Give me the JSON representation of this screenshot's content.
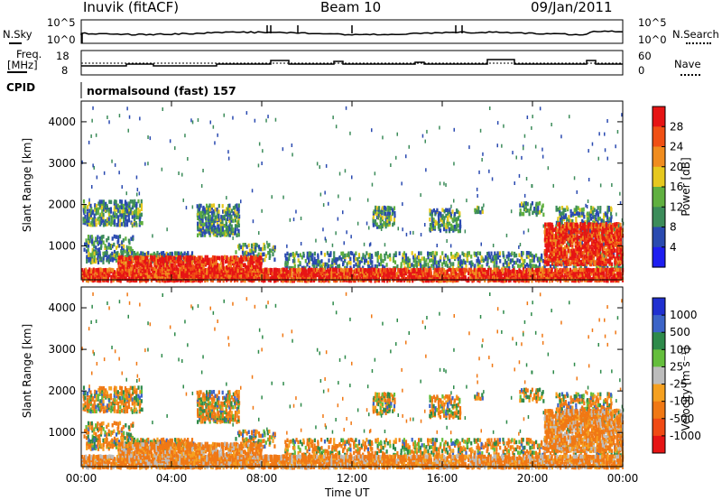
{
  "header": {
    "station": "Inuvik (fitACF)",
    "beam": "Beam 10",
    "date": "09/Jan/2011"
  },
  "sky_panel": {
    "left_label": "N.Sky",
    "right_label": "N.Search",
    "left_ticks": [
      "10^5",
      "10^0"
    ],
    "right_ticks": [
      "10^5",
      "10^0"
    ]
  },
  "freq_panel": {
    "left_label_1": "Freq.",
    "left_label_2": "[MHz]",
    "right_label": "Nave",
    "left_ticks": [
      "18",
      "8"
    ],
    "right_ticks": [
      "60",
      "0"
    ]
  },
  "cpid": {
    "label": "CPID",
    "value": "normalsound (fast) 157"
  },
  "colors": {
    "power_scale": [
      "#1e1ef0",
      "#2a4ab0",
      "#3c8c5a",
      "#60b040",
      "#e6c81e",
      "#f08c1e",
      "#f05014",
      "#e61414"
    ],
    "velocity_scale": [
      "#2030d0",
      "#3c64c8",
      "#2e8a4a",
      "#64be3c",
      "#bcbcbc",
      "#f5a020",
      "#f07814",
      "#f04a14",
      "#e61414"
    ]
  },
  "chart_data": [
    {
      "type": "heatmap",
      "panel": "power",
      "ylabel": "Slant Range [km]",
      "y_ticks": [
        "1000",
        "2000",
        "3000",
        "4000"
      ],
      "ylim": [
        180,
        4500
      ],
      "xlim_hours": [
        0,
        24
      ],
      "colorbar": {
        "label": "Power [dB]",
        "ticks": [
          "4",
          "8",
          "12",
          "16",
          "20",
          "24",
          "28"
        ],
        "range": [
          0,
          30
        ]
      }
    },
    {
      "type": "heatmap",
      "panel": "velocity",
      "ylabel": "Slant Range [km]",
      "y_ticks": [
        "1000",
        "2000",
        "3000",
        "4000"
      ],
      "ylim": [
        180,
        4500
      ],
      "xlim_hours": [
        0,
        24
      ],
      "colorbar": {
        "label": "Velocity [m s⁻¹]",
        "ticks": [
          "1000",
          "500",
          "100",
          "25",
          "-25",
          "-100",
          "-500",
          "-1000"
        ]
      }
    }
  ],
  "x_axis": {
    "label": "Time UT",
    "ticks": [
      "00:00",
      "04:00",
      "08:00",
      "12:00",
      "16:00",
      "20:00",
      "00:00"
    ]
  }
}
